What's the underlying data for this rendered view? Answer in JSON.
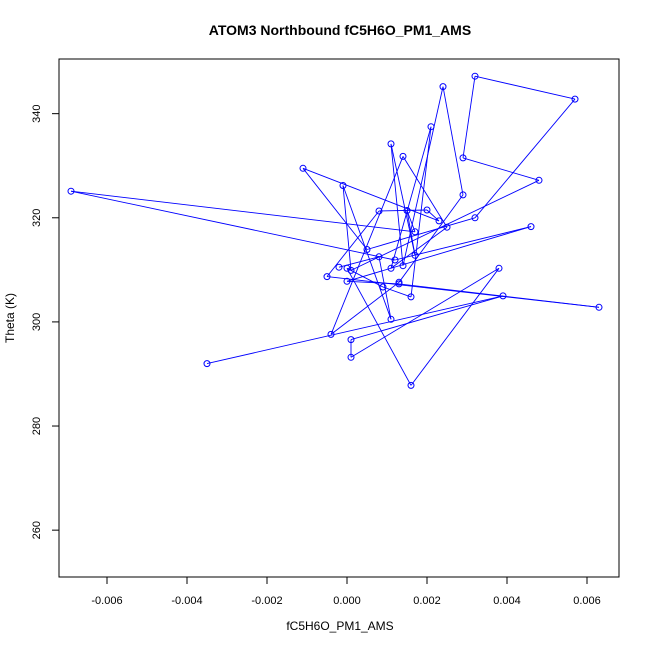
{
  "chart_data": {
    "type": "line",
    "title": "ATOM3 Northbound fC5H6O_PM1_AMS",
    "xlabel": "fC5H6O_PM1_AMS",
    "ylabel": "Theta (K)",
    "xlim": [
      -0.0072,
      0.0068
    ],
    "ylim": [
      251,
      350.5
    ],
    "xticks": [
      -0.006,
      -0.004,
      -0.002,
      0.0,
      0.002,
      0.004,
      0.006
    ],
    "xtick_labels": [
      "-0.006",
      "-0.004",
      "-0.002",
      "0.000",
      "0.002",
      "0.004",
      "0.006"
    ],
    "yticks": [
      260,
      280,
      300,
      320,
      340
    ],
    "ytick_labels": [
      "260",
      "280",
      "300",
      "320",
      "340"
    ],
    "grid": false,
    "marker": "open-circle",
    "series": [
      {
        "color": "#0000ff",
        "points": [
          [
            -0.0035,
            292.0
          ],
          [
            0.0039,
            305.0
          ],
          [
            0.0001,
            296.6
          ],
          [
            0.0001,
            293.2
          ],
          [
            0.0038,
            310.3
          ],
          [
            0.0016,
            287.8
          ],
          [
            0.0,
            310.3
          ],
          [
            0.0009,
            306.7
          ],
          [
            0.0016,
            304.8
          ],
          [
            0.0021,
            337.5
          ],
          [
            0.0011,
            310.3
          ],
          [
            0.0025,
            318.2
          ],
          [
            0.0014,
            331.8
          ],
          [
            -0.0004,
            297.6
          ],
          [
            0.0013,
            307.6
          ],
          [
            0.0029,
            324.4
          ],
          [
            0.0024,
            345.2
          ],
          [
            0.0014,
            310.8
          ],
          [
            0.0011,
            334.2
          ],
          [
            0.0017,
            312.8
          ],
          [
            0.0015,
            321.4
          ],
          [
            0.0017,
            317.3
          ],
          [
            -0.0069,
            325.1
          ],
          [
            0.0012,
            311.9
          ],
          [
            0.0046,
            318.3
          ],
          [
            0.0,
            307.8
          ],
          [
            0.0013,
            307.3
          ],
          [
            0.0063,
            302.8
          ],
          [
            -0.0005,
            308.7
          ],
          [
            0.0008,
            321.3
          ],
          [
            0.002,
            321.5
          ],
          [
            0.0023,
            319.4
          ],
          [
            -0.0011,
            329.5
          ],
          [
            0.0005,
            313.9
          ],
          [
            0.0032,
            320.0
          ],
          [
            0.0057,
            342.8
          ],
          [
            0.0032,
            347.2
          ],
          [
            0.0029,
            331.5
          ],
          [
            0.0048,
            327.2
          ],
          [
            0.0001,
            309.9
          ],
          [
            -0.0001,
            326.2
          ],
          [
            0.0011,
            300.5
          ],
          [
            0.0008,
            312.5
          ],
          [
            -0.0002,
            310.5
          ]
        ]
      }
    ]
  }
}
